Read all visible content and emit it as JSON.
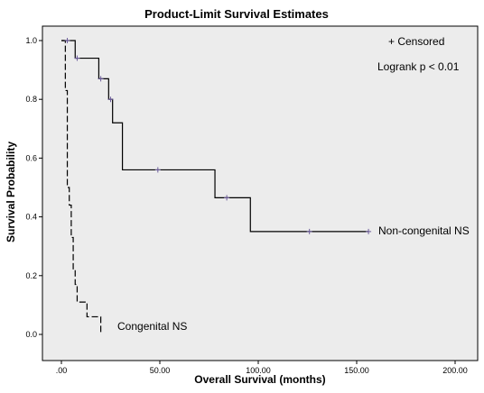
{
  "chart_data": {
    "type": "line",
    "title": "Product-Limit Survival Estimates",
    "xlabel": "Overall Survival (months)",
    "ylabel": "Survival Probability",
    "xlim": [
      0,
      200
    ],
    "ylim": [
      0,
      1.0
    ],
    "x_ticks": [
      0,
      50,
      100,
      150,
      200
    ],
    "x_tick_labels": [
      ".00",
      "50.00",
      "100.00",
      "150.00",
      "200.00"
    ],
    "y_ticks": [
      0,
      0.2,
      0.4,
      0.6,
      0.8,
      1.0
    ],
    "y_tick_labels": [
      "0.0",
      "0.2",
      "0.4",
      "0.6",
      "0.8",
      "1.0"
    ],
    "grid": false,
    "legend_text": "+ Censored",
    "annotation": "Logrank p < 0.01",
    "colors": {
      "plot_background": "#ececec",
      "line": "#000000",
      "censor_mark": "#6b5b9a"
    },
    "series": [
      {
        "name": "Non-congenital NS",
        "style": "solid",
        "steps": [
          [
            0,
            1.0
          ],
          [
            7,
            0.94
          ],
          [
            19,
            0.87
          ],
          [
            24,
            0.8
          ],
          [
            26,
            0.72
          ],
          [
            31,
            0.56
          ],
          [
            78,
            0.465
          ],
          [
            96,
            0.35
          ],
          [
            156,
            0.35
          ]
        ],
        "censored": [
          [
            3,
            1.0
          ],
          [
            8,
            0.94
          ],
          [
            20,
            0.87
          ],
          [
            25,
            0.8
          ],
          [
            49,
            0.56
          ],
          [
            84,
            0.465
          ],
          [
            126,
            0.35
          ],
          [
            156,
            0.35
          ]
        ]
      },
      {
        "name": "Congenital NS",
        "style": "dashed",
        "steps": [
          [
            0,
            1.0
          ],
          [
            2,
            0.83
          ],
          [
            3,
            0.5
          ],
          [
            4,
            0.44
          ],
          [
            5,
            0.33
          ],
          [
            6,
            0.22
          ],
          [
            7,
            0.17
          ],
          [
            8,
            0.11
          ],
          [
            13,
            0.06
          ],
          [
            20,
            0.0
          ]
        ],
        "censored": []
      }
    ]
  }
}
